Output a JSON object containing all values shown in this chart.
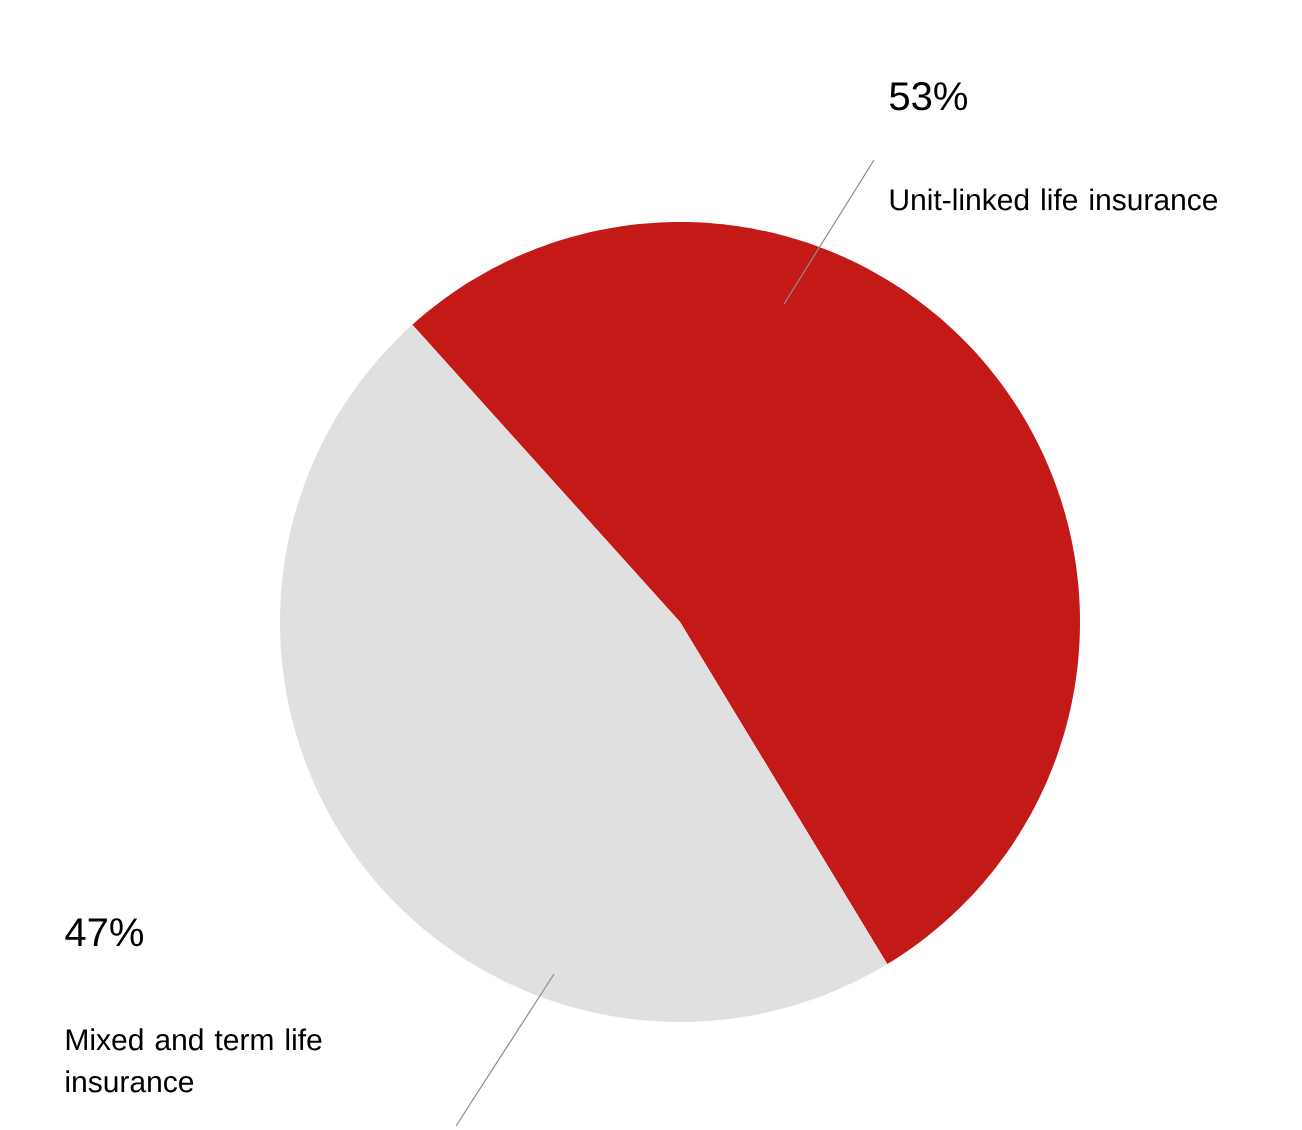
{
  "chart_data": {
    "type": "pie",
    "categories": [
      "Unit-linked life insurance",
      "Mixed and term life insurance"
    ],
    "values": [
      53,
      47
    ],
    "colors": [
      "#c41a17",
      "#e0e0e0"
    ],
    "value_labels": [
      "53%",
      "47%"
    ]
  }
}
